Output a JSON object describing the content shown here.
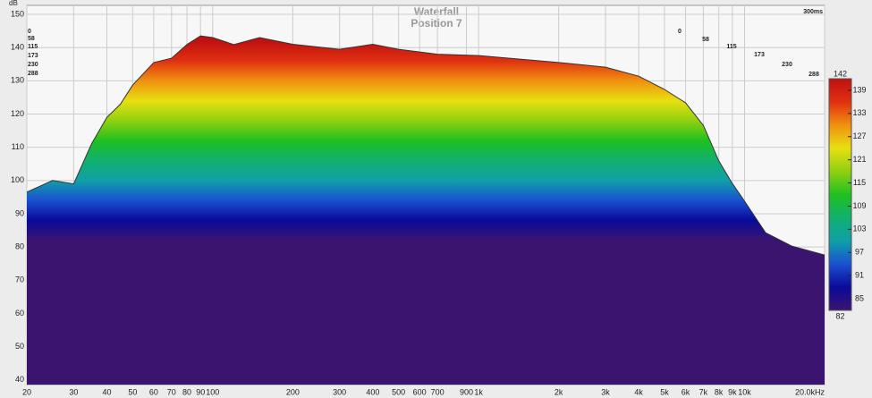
{
  "chart_data": {
    "type": "area",
    "title": "Waterfall",
    "subtitle": "Position 7",
    "y_label": "dB",
    "log_x": true,
    "grid": true,
    "xlim": [
      20,
      20000
    ],
    "ylim": [
      38.6,
      152.7
    ],
    "xticks": [
      20,
      30,
      40,
      50,
      60,
      70,
      80,
      90,
      100,
      200,
      300,
      400,
      500,
      600,
      700,
      900,
      {
        "value": 1000,
        "label": "1k"
      },
      {
        "value": 2000,
        "label": "2k"
      },
      {
        "value": 3000,
        "label": "3k"
      },
      {
        "value": 4000,
        "label": "4k"
      },
      {
        "value": 5000,
        "label": "5k"
      },
      {
        "value": 6000,
        "label": "6k"
      },
      {
        "value": 7000,
        "label": "7k"
      },
      {
        "value": 8000,
        "label": "8k"
      },
      {
        "value": 9000,
        "label": "9k"
      },
      {
        "value": 10000,
        "label": "10k"
      },
      {
        "value": 20000,
        "label": "20.0kHz"
      }
    ],
    "yticks": [
      40,
      50,
      60,
      70,
      80,
      90,
      100,
      110,
      120,
      130,
      140,
      150
    ],
    "x": [
      20,
      25,
      30,
      35,
      40,
      45,
      50,
      60,
      70,
      80,
      90,
      100,
      120,
      150,
      200,
      300,
      400,
      500,
      700,
      1000,
      2000,
      3000,
      4000,
      5000,
      6000,
      7000,
      8000,
      9000,
      10000,
      12000,
      15000,
      20000
    ],
    "values": [
      96.5,
      100,
      99,
      111,
      119,
      123,
      128.7,
      135.5,
      136.8,
      140.9,
      143.5,
      143,
      140.9,
      143,
      141,
      139.5,
      141,
      139.5,
      138,
      137.6,
      135.5,
      134.1,
      131.4,
      127.4,
      123.4,
      116.6,
      105.9,
      99.1,
      93.8,
      84.3,
      80.3,
      77.6
    ],
    "time_labels": [
      0,
      58,
      115,
      173,
      230,
      288
    ],
    "time_end_label": "300ms",
    "colorbar": {
      "clim": [
        82,
        142
      ],
      "ticks": [
        85,
        91,
        97,
        103,
        109,
        115,
        121,
        127,
        133,
        139
      ],
      "colors": [
        "#3b1470",
        "#0a0a9a",
        "#1a50d0",
        "#10a0a8",
        "#10b070",
        "#20c020",
        "#90d010",
        "#e8e010",
        "#f09010",
        "#e03010",
        "#c01010"
      ]
    }
  }
}
